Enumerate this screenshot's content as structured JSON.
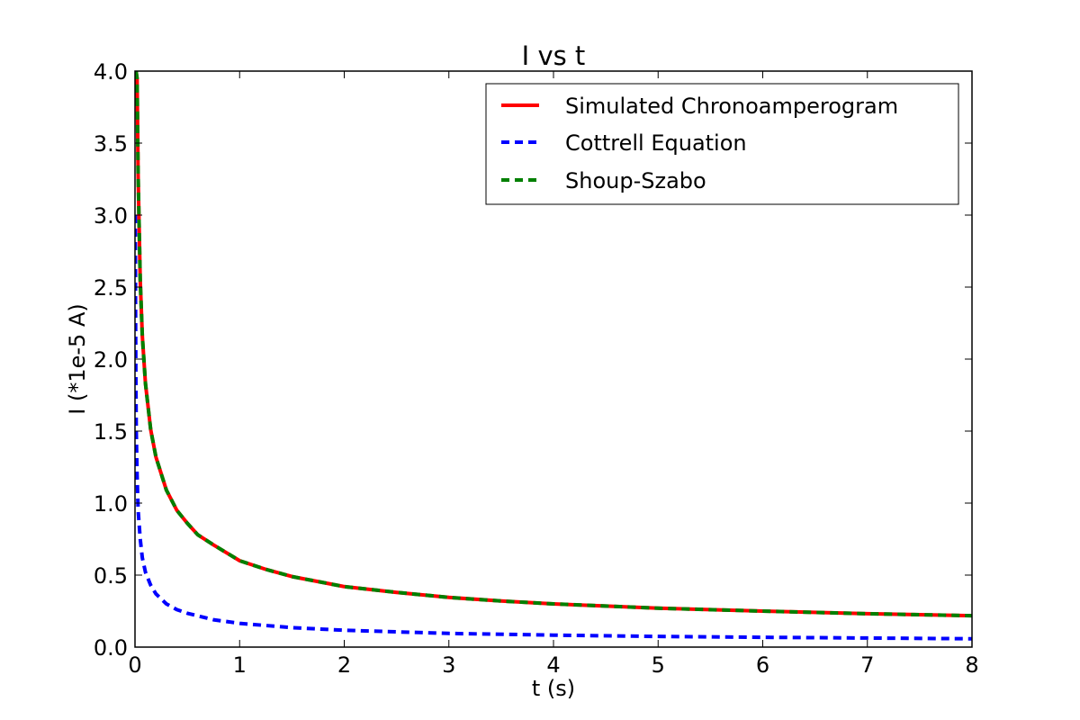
{
  "chart_data": {
    "type": "line",
    "title": "I vs t",
    "xlabel": "t (s)",
    "ylabel": "I (*1e-5 A)",
    "xlim": [
      0,
      8
    ],
    "ylim": [
      0,
      4
    ],
    "xticks": [
      "0",
      "1",
      "2",
      "3",
      "4",
      "5",
      "6",
      "7",
      "8"
    ],
    "yticks": [
      "0.0",
      "0.5",
      "1.0",
      "1.5",
      "2.0",
      "2.5",
      "3.0",
      "3.5",
      "4.0"
    ],
    "grid": false,
    "legend_position": "top-right",
    "series": [
      {
        "name": "Simulated Chronoamperogram",
        "color": "#ff0000",
        "style": "solid",
        "points": [
          [
            0.01,
            4.0
          ],
          [
            0.02,
            3.95
          ],
          [
            0.03,
            3.27
          ],
          [
            0.05,
            2.55
          ],
          [
            0.07,
            2.16
          ],
          [
            0.1,
            1.83
          ],
          [
            0.15,
            1.51
          ],
          [
            0.2,
            1.32
          ],
          [
            0.3,
            1.09
          ],
          [
            0.4,
            0.95
          ],
          [
            0.5,
            0.86
          ],
          [
            0.6,
            0.78
          ],
          [
            0.75,
            0.71
          ],
          [
            1.0,
            0.6
          ],
          [
            1.25,
            0.54
          ],
          [
            1.5,
            0.49
          ],
          [
            2.0,
            0.42
          ],
          [
            2.5,
            0.38
          ],
          [
            3.0,
            0.345
          ],
          [
            3.5,
            0.32
          ],
          [
            4.0,
            0.3
          ],
          [
            4.5,
            0.285
          ],
          [
            5.0,
            0.27
          ],
          [
            6.0,
            0.25
          ],
          [
            7.0,
            0.232
          ],
          [
            8.0,
            0.218
          ]
        ]
      },
      {
        "name": "Cottrell Equation",
        "color": "#0000ff",
        "style": "dashed",
        "points": [
          [
            0.003,
            3.0
          ],
          [
            0.005,
            2.4
          ],
          [
            0.008,
            1.9
          ],
          [
            0.012,
            1.5
          ],
          [
            0.02,
            1.2
          ],
          [
            0.03,
            0.95
          ],
          [
            0.05,
            0.75
          ],
          [
            0.07,
            0.62
          ],
          [
            0.1,
            0.52
          ],
          [
            0.15,
            0.43
          ],
          [
            0.2,
            0.37
          ],
          [
            0.3,
            0.3
          ],
          [
            0.4,
            0.26
          ],
          [
            0.5,
            0.235
          ],
          [
            0.75,
            0.19
          ],
          [
            1.0,
            0.165
          ],
          [
            1.5,
            0.135
          ],
          [
            2.0,
            0.117
          ],
          [
            3.0,
            0.095
          ],
          [
            4.0,
            0.083
          ],
          [
            5.0,
            0.074
          ],
          [
            6.0,
            0.068
          ],
          [
            7.0,
            0.063
          ],
          [
            8.0,
            0.058
          ]
        ]
      },
      {
        "name": "Shoup-Szabo",
        "color": "#008000",
        "style": "dashed",
        "points": [
          [
            0.01,
            4.0
          ],
          [
            0.02,
            3.95
          ],
          [
            0.03,
            3.27
          ],
          [
            0.05,
            2.55
          ],
          [
            0.07,
            2.16
          ],
          [
            0.1,
            1.83
          ],
          [
            0.15,
            1.51
          ],
          [
            0.2,
            1.32
          ],
          [
            0.3,
            1.09
          ],
          [
            0.4,
            0.95
          ],
          [
            0.5,
            0.86
          ],
          [
            0.6,
            0.78
          ],
          [
            0.75,
            0.71
          ],
          [
            1.0,
            0.6
          ],
          [
            1.25,
            0.54
          ],
          [
            1.5,
            0.49
          ],
          [
            2.0,
            0.42
          ],
          [
            2.5,
            0.38
          ],
          [
            3.0,
            0.345
          ],
          [
            3.5,
            0.32
          ],
          [
            4.0,
            0.3
          ],
          [
            4.5,
            0.285
          ],
          [
            5.0,
            0.27
          ],
          [
            6.0,
            0.25
          ],
          [
            7.0,
            0.232
          ],
          [
            8.0,
            0.218
          ]
        ]
      }
    ]
  }
}
